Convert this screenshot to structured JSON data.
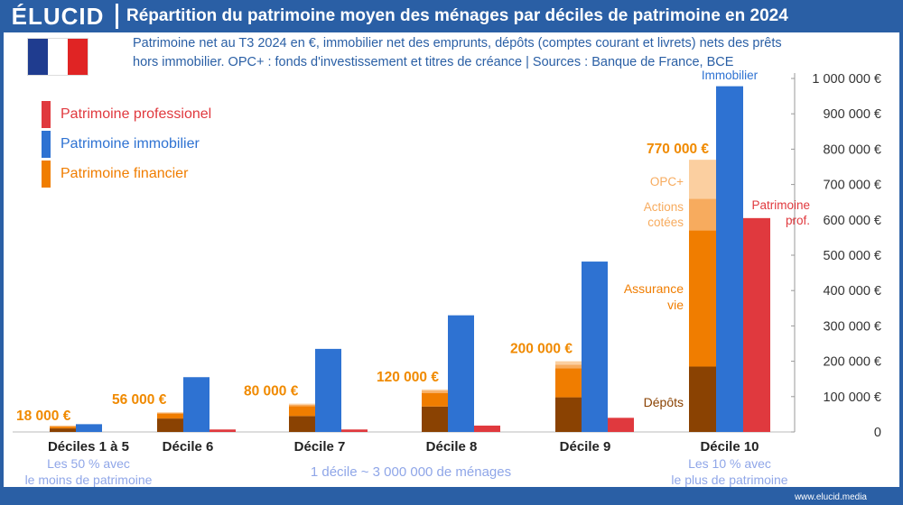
{
  "header": {
    "logo": "ÉLUCID",
    "title": "Répartition du patrimoine moyen des ménages par déciles de patrimoine en 2024"
  },
  "subtitle": {
    "line1": "Patrimoine net au T3 2024 en €, immobilier net des emprunts, dépôts (comptes courant et livrets) nets des prêts",
    "line2": "hors immobilier. OPC+ : fonds d'investissement et titres de créance  |  Sources : Banque de France, BCE"
  },
  "flag_colors": [
    "#1f3c8f",
    "#ffffff",
    "#e02424"
  ],
  "legend": [
    {
      "label": "Patrimoine professionel",
      "color": "#e0393e"
    },
    {
      "label": "Patrimoine immobilier",
      "color": "#2e72d2"
    },
    {
      "label": "Patrimoine financier",
      "color": "#f07d00"
    }
  ],
  "colors": {
    "depots": "#8a4202",
    "assurance_vie": "#f07d00",
    "actions": "#f7ab5e",
    "opc": "#fbcfa0",
    "immobilier": "#2e72d2",
    "professionnel": "#e0393e",
    "total_label": "#f08a00",
    "axis_text": "#333333",
    "note_text": "#8fa6e8"
  },
  "notes": {
    "low_group": "Les 50 % avec\nle moins de patrimoine",
    "center": "1 décile ~ 3 000 000 de ménages",
    "high_group": "Les 10 % avec\nle plus de patrimoine"
  },
  "website": "www.elucid.media",
  "chart_data": {
    "type": "bar",
    "title": "Répartition du patrimoine moyen des ménages par déciles de patrimoine en 2024",
    "ylim": [
      0,
      1000000
    ],
    "yticks": [
      0,
      100000,
      200000,
      300000,
      400000,
      500000,
      600000,
      700000,
      800000,
      900000,
      1000000
    ],
    "ytick_labels": [
      "0",
      "100 000 €",
      "200 000 €",
      "300 000 €",
      "400 000 €",
      "500 000 €",
      "600 000 €",
      "700 000 €",
      "800 000 €",
      "900 000 €",
      "1 000 000 €"
    ],
    "categories": [
      "Déciles 1 à 5",
      "Décile 6",
      "Décile 7",
      "Décile 8",
      "Décile 9",
      "Décile 10"
    ],
    "financier_components": [
      "Dépôts",
      "Assurance vie",
      "Actions cotées",
      "OPC+"
    ],
    "financier": [
      {
        "depots": 10000,
        "assurance_vie": 5000,
        "actions": 1500,
        "opc": 1500
      },
      {
        "depots": 38000,
        "assurance_vie": 14000,
        "actions": 2000,
        "opc": 2000
      },
      {
        "depots": 45000,
        "assurance_vie": 28000,
        "actions": 4000,
        "opc": 3000
      },
      {
        "depots": 72000,
        "assurance_vie": 38000,
        "actions": 6000,
        "opc": 4000
      },
      {
        "depots": 98000,
        "assurance_vie": 82000,
        "actions": 10000,
        "opc": 10000
      },
      {
        "depots": 185000,
        "assurance_vie": 385000,
        "actions": 90000,
        "opc": 110000
      }
    ],
    "financier_totals": [
      "18 000 €",
      "56 000 €",
      "80 000 €",
      "120 000 €",
      "200 000 €",
      "770 000 €"
    ],
    "immobilier": [
      22000,
      155000,
      235000,
      330000,
      482000,
      978000
    ],
    "professionnel": [
      0,
      7000,
      7000,
      18000,
      40000,
      605000
    ],
    "annotations": {
      "immobilier": "Immobilier",
      "patrimoine_prof": "Patrimoine\nprof.",
      "opc": "OPC+",
      "actions": "Actions\ncotées",
      "assurance_vie": "Assurance\nvie",
      "depots": "Dépôts"
    }
  }
}
